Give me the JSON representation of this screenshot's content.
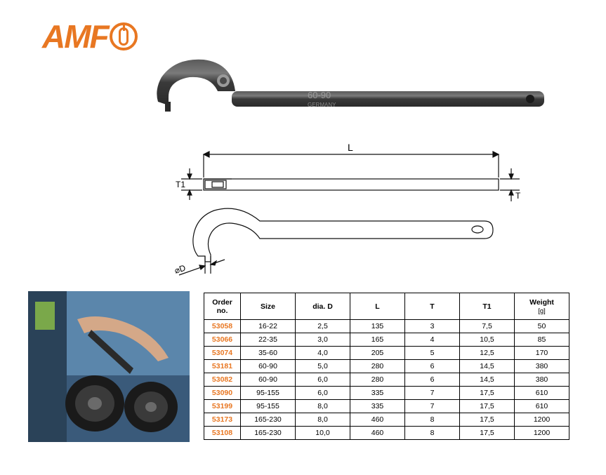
{
  "logo": {
    "text": "AMF"
  },
  "product_marking": {
    "line1": "60-90",
    "line2": "GERMANY"
  },
  "diagram_labels": {
    "L": "L",
    "T": "T",
    "T1": "T1",
    "D": "⌀D"
  },
  "table": {
    "headers": {
      "order": "Order no.",
      "size": "Size",
      "d": "dia. D",
      "l": "L",
      "t": "T",
      "t1": "T1",
      "weight": "Weight",
      "weight_unit": "[g]"
    },
    "rows": [
      {
        "order": "53058",
        "size": "16-22",
        "d": "2,5",
        "l": "135",
        "t": "3",
        "t1": "7,5",
        "w": "50"
      },
      {
        "order": "53066",
        "size": "22-35",
        "d": "3,0",
        "l": "165",
        "t": "4",
        "t1": "10,5",
        "w": "85"
      },
      {
        "order": "53074",
        "size": "35-60",
        "d": "4,0",
        "l": "205",
        "t": "5",
        "t1": "12,5",
        "w": "170"
      },
      {
        "order": "53181",
        "size": "60-90",
        "d": "5,0",
        "l": "280",
        "t": "6",
        "t1": "14,5",
        "w": "380"
      },
      {
        "order": "53082",
        "size": "60-90",
        "d": "6,0",
        "l": "280",
        "t": "6",
        "t1": "14,5",
        "w": "380"
      },
      {
        "order": "53090",
        "size": "95-155",
        "d": "6,0",
        "l": "335",
        "t": "7",
        "t1": "17,5",
        "w": "610"
      },
      {
        "order": "53199",
        "size": "95-155",
        "d": "8,0",
        "l": "335",
        "t": "7",
        "t1": "17,5",
        "w": "610"
      },
      {
        "order": "53173",
        "size": "165-230",
        "d": "8,0",
        "l": "460",
        "t": "8",
        "t1": "17,5",
        "w": "1200"
      },
      {
        "order": "53108",
        "size": "165-230",
        "d": "10,0",
        "l": "460",
        "t": "8",
        "t1": "17,5",
        "w": "1200"
      }
    ]
  },
  "colors": {
    "brand": "#e87722",
    "tool_body": "#3a3a3a",
    "tool_highlight": "#6a6a6a",
    "diagram_line": "#111111",
    "background": "#ffffff"
  }
}
